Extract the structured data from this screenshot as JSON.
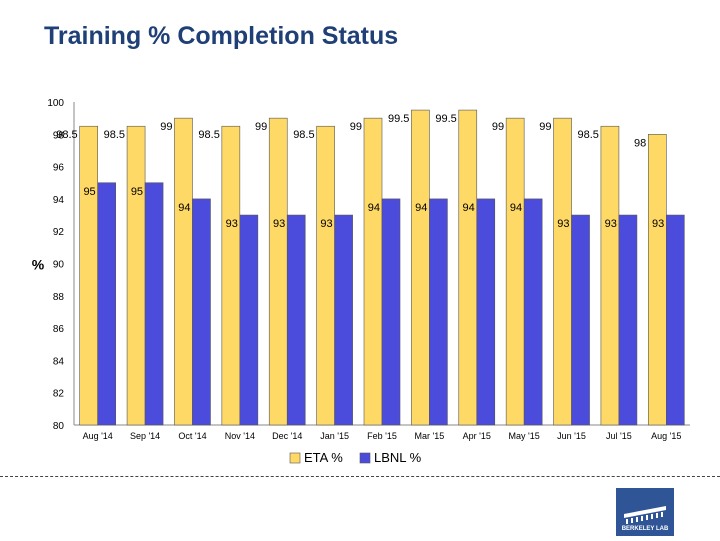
{
  "chart_data": {
    "type": "bar",
    "title": "Training % Completion Status",
    "ylabel": "%",
    "xlabel": "",
    "ylim": [
      80,
      100
    ],
    "yticks": [
      80,
      82,
      84,
      86,
      88,
      90,
      92,
      94,
      96,
      98,
      100
    ],
    "categories": [
      "Aug '14",
      "Sep '14",
      "Oct '14",
      "Nov '14",
      "Dec '14",
      "Jan '15",
      "Feb '15",
      "Mar '15",
      "Apr '15",
      "May '15",
      "Jun '15",
      "Jul '15",
      "Aug '15"
    ],
    "series": [
      {
        "name": "ETA %",
        "color": "#ffd966",
        "values": [
          98.5,
          98.5,
          99,
          98.5,
          99,
          98.5,
          99,
          99.5,
          99.5,
          99,
          99,
          98.5,
          98
        ]
      },
      {
        "name": "LBNL %",
        "color": "#4c4cdc",
        "values": [
          95,
          95,
          94,
          93,
          93,
          93,
          94,
          94,
          94,
          94,
          93,
          93,
          93
        ]
      }
    ],
    "grid": false,
    "legend": "bottom",
    "data_labels": true
  },
  "logo": {
    "text": "BERKELEY LAB"
  }
}
